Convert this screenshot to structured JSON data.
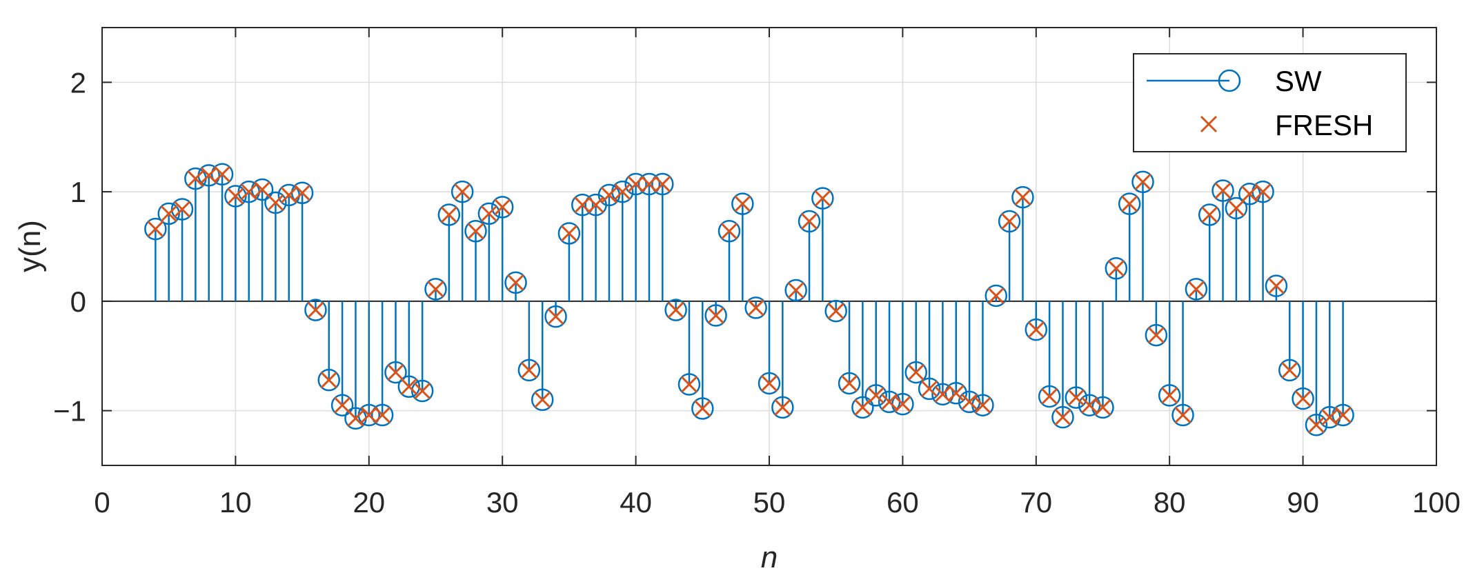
{
  "chart_data": {
    "type": "scatter",
    "subtype": "stem",
    "xlabel": "n",
    "ylabel": "y(n)",
    "xlim": [
      0,
      100
    ],
    "ylim": [
      -1.5,
      2.5
    ],
    "xticks": [
      0,
      10,
      20,
      30,
      40,
      50,
      60,
      70,
      80,
      90,
      100
    ],
    "yticks": [
      -1,
      0,
      1,
      2
    ],
    "xtick_labels": [
      "0",
      "10",
      "20",
      "30",
      "40",
      "50",
      "60",
      "70",
      "80",
      "90",
      "100"
    ],
    "ytick_labels": [
      "−1",
      "0",
      "1",
      "2"
    ],
    "grid": true,
    "legend_position": "top-right",
    "x": [
      4,
      5,
      6,
      7,
      8,
      9,
      10,
      11,
      12,
      13,
      14,
      15,
      16,
      17,
      18,
      19,
      20,
      21,
      22,
      23,
      24,
      25,
      26,
      27,
      28,
      29,
      30,
      31,
      32,
      33,
      34,
      35,
      36,
      37,
      38,
      39,
      40,
      41,
      42,
      43,
      44,
      45,
      46,
      47,
      48,
      49,
      50,
      51,
      52,
      53,
      54,
      55,
      56,
      57,
      58,
      59,
      60,
      61,
      62,
      63,
      64,
      65,
      66,
      67,
      68,
      69,
      70,
      71,
      72,
      73,
      74,
      75,
      76,
      77,
      78,
      79,
      80,
      81,
      82,
      83,
      84,
      85,
      86,
      87,
      88,
      89,
      90,
      91,
      92,
      93
    ],
    "series": [
      {
        "name": "SW",
        "marker": "circle-stem",
        "color": "#0072BD",
        "values": [
          0.66,
          0.8,
          0.84,
          1.12,
          1.15,
          1.16,
          0.96,
          1.0,
          1.02,
          0.9,
          0.97,
          0.99,
          -0.08,
          -0.72,
          -0.95,
          -1.07,
          -1.04,
          -1.04,
          -0.65,
          -0.78,
          -0.82,
          0.11,
          0.79,
          1.0,
          0.64,
          0.8,
          0.86,
          0.17,
          -0.63,
          -0.9,
          -0.14,
          0.62,
          0.88,
          0.88,
          0.97,
          1.0,
          1.07,
          1.07,
          1.07,
          -0.08,
          -0.76,
          -0.98,
          -0.13,
          0.64,
          0.89,
          -0.06,
          -0.75,
          -0.97,
          0.1,
          0.73,
          0.94,
          -0.09,
          -0.75,
          -0.97,
          -0.86,
          -0.92,
          -0.94,
          -0.65,
          -0.8,
          -0.85,
          -0.84,
          -0.92,
          -0.95,
          0.05,
          0.73,
          0.95,
          -0.26,
          -0.87,
          -1.06,
          -0.88,
          -0.95,
          -0.97,
          0.3,
          0.89,
          1.09,
          -0.31,
          -0.86,
          -1.04,
          0.11,
          0.79,
          1.01,
          0.85,
          0.98,
          1.0,
          0.14,
          -0.63,
          -0.89,
          -1.13,
          -1.06,
          -1.04
        ]
      },
      {
        "name": "FRESH",
        "marker": "x",
        "color": "#D95319",
        "values": [
          0.66,
          0.8,
          0.84,
          1.12,
          1.15,
          1.16,
          0.96,
          1.0,
          1.02,
          0.9,
          0.97,
          0.99,
          -0.08,
          -0.72,
          -0.95,
          -1.07,
          -1.04,
          -1.04,
          -0.65,
          -0.78,
          -0.82,
          0.11,
          0.79,
          1.0,
          0.64,
          0.8,
          0.86,
          0.17,
          -0.63,
          -0.9,
          -0.14,
          0.62,
          0.88,
          0.88,
          0.97,
          1.0,
          1.07,
          1.07,
          1.07,
          -0.08,
          -0.76,
          -0.98,
          -0.13,
          0.64,
          0.89,
          -0.06,
          -0.75,
          -0.97,
          0.1,
          0.73,
          0.94,
          -0.09,
          -0.75,
          -0.97,
          -0.86,
          -0.92,
          -0.94,
          -0.65,
          -0.8,
          -0.85,
          -0.84,
          -0.92,
          -0.95,
          0.05,
          0.73,
          0.95,
          -0.26,
          -0.87,
          -1.06,
          -0.88,
          -0.95,
          -0.97,
          0.3,
          0.89,
          1.09,
          -0.31,
          -0.86,
          -1.04,
          0.11,
          0.79,
          1.01,
          0.85,
          0.98,
          1.0,
          0.14,
          -0.63,
          -0.89,
          -1.13,
          -1.06,
          -1.04
        ]
      }
    ]
  }
}
